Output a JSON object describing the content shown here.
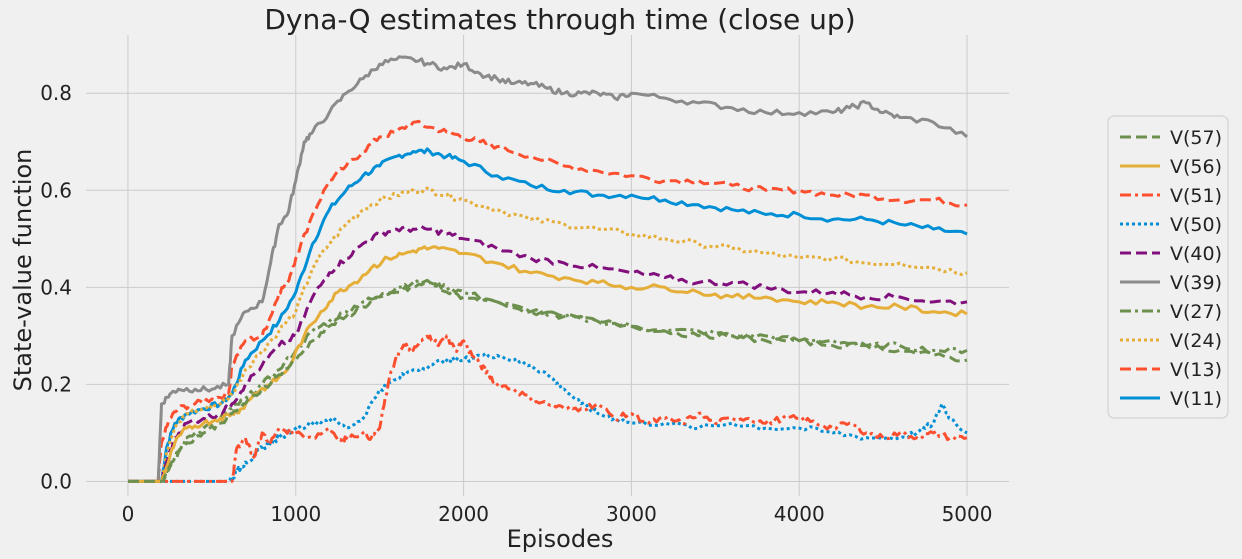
{
  "chart_data": {
    "type": "line",
    "title": "Dyna-Q estimates through time (close up)",
    "xlabel": "Episodes",
    "ylabel": "State-value function",
    "xlim": [
      -250,
      5250
    ],
    "ylim": [
      -0.03,
      0.92
    ],
    "xticks": [
      0,
      1000,
      2000,
      3000,
      4000,
      5000
    ],
    "yticks": [
      0.0,
      0.2,
      0.4,
      0.6,
      0.8
    ],
    "xtick_labels": [
      "0",
      "1000",
      "2000",
      "3000",
      "4000",
      "5000"
    ],
    "ytick_labels": [
      "0.0",
      "0.2",
      "0.4",
      "0.6",
      "0.8"
    ],
    "grid": true,
    "legend_position": "right",
    "series": [
      {
        "name": "V(57)",
        "color": "#6d904f",
        "dash": "dashed",
        "x": [
          0,
          150,
          200,
          260,
          350,
          450,
          550,
          620,
          700,
          800,
          900,
          1000,
          1100,
          1200,
          1300,
          1400,
          1500,
          1600,
          1700,
          1800,
          1900,
          2000,
          2200,
          2400,
          2600,
          2800,
          3000,
          3200,
          3400,
          3600,
          3800,
          4000,
          4200,
          4400,
          4600,
          4800,
          5000
        ],
        "values": [
          0,
          0,
          0,
          0.04,
          0.08,
          0.1,
          0.12,
          0.14,
          0.16,
          0.19,
          0.22,
          0.25,
          0.29,
          0.32,
          0.34,
          0.36,
          0.38,
          0.39,
          0.4,
          0.41,
          0.39,
          0.38,
          0.37,
          0.35,
          0.34,
          0.33,
          0.32,
          0.31,
          0.3,
          0.3,
          0.29,
          0.29,
          0.28,
          0.28,
          0.27,
          0.26,
          0.25
        ]
      },
      {
        "name": "V(56)",
        "color": "#e5ae38",
        "dash": "solid",
        "x": [
          0,
          200,
          230,
          280,
          350,
          450,
          550,
          620,
          680,
          750,
          850,
          950,
          1050,
          1150,
          1250,
          1350,
          1450,
          1550,
          1650,
          1750,
          1850,
          2000,
          2200,
          2400,
          2600,
          2800,
          3000,
          3200,
          3400,
          3600,
          3800,
          4000,
          4200,
          4400,
          4600,
          4800,
          5000
        ],
        "values": [
          0,
          0,
          0.03,
          0.08,
          0.11,
          0.12,
          0.13,
          0.14,
          0.15,
          0.18,
          0.2,
          0.23,
          0.3,
          0.35,
          0.39,
          0.41,
          0.44,
          0.46,
          0.47,
          0.48,
          0.48,
          0.47,
          0.45,
          0.43,
          0.42,
          0.41,
          0.4,
          0.4,
          0.39,
          0.38,
          0.38,
          0.37,
          0.37,
          0.36,
          0.36,
          0.35,
          0.345
        ]
      },
      {
        "name": "V(51)",
        "color": "#fc4f30",
        "dash": "dashdot",
        "x": [
          0,
          400,
          500,
          620,
          650,
          700,
          750,
          800,
          850,
          900,
          1000,
          1100,
          1200,
          1280,
          1300,
          1400,
          1450,
          1500,
          1550,
          1600,
          1650,
          1700,
          1750,
          1800,
          1850,
          1900,
          1950,
          2000,
          2050,
          2100,
          2150,
          2200,
          2300,
          2400,
          2500,
          2600,
          2700,
          2800,
          2900,
          3000,
          3100,
          3200,
          3300,
          3400,
          3500,
          3600,
          3700,
          3800,
          3900,
          4000,
          4100,
          4200,
          4300,
          4400,
          4500,
          4600,
          4700,
          4800,
          4900,
          5000
        ],
        "values": [
          0,
          0,
          0,
          0,
          0.07,
          0.09,
          0.05,
          0.1,
          0.08,
          0.11,
          0.1,
          0.09,
          0.11,
          0.08,
          0.09,
          0.1,
          0.09,
          0.11,
          0.2,
          0.26,
          0.28,
          0.27,
          0.29,
          0.3,
          0.28,
          0.3,
          0.27,
          0.29,
          0.26,
          0.24,
          0.22,
          0.2,
          0.19,
          0.17,
          0.16,
          0.15,
          0.15,
          0.16,
          0.13,
          0.14,
          0.12,
          0.13,
          0.12,
          0.14,
          0.12,
          0.13,
          0.13,
          0.12,
          0.13,
          0.13,
          0.12,
          0.11,
          0.12,
          0.1,
          0.09,
          0.1,
          0.09,
          0.1,
          0.09,
          0.09
        ]
      },
      {
        "name": "V(50)",
        "color": "#008fd5",
        "dash": "dotted",
        "x": [
          0,
          600,
          650,
          700,
          750,
          800,
          850,
          900,
          1000,
          1100,
          1200,
          1300,
          1400,
          1500,
          1600,
          1700,
          1800,
          1900,
          2000,
          2100,
          2200,
          2300,
          2400,
          2500,
          2600,
          2700,
          2800,
          2900,
          3000,
          3200,
          3400,
          3600,
          3800,
          4000,
          4200,
          4400,
          4600,
          4700,
          4800,
          4850,
          4900,
          5000
        ],
        "values": [
          0,
          0,
          0.02,
          0.04,
          0.05,
          0.07,
          0.08,
          0.09,
          0.11,
          0.12,
          0.13,
          0.11,
          0.13,
          0.19,
          0.21,
          0.23,
          0.24,
          0.25,
          0.25,
          0.26,
          0.26,
          0.25,
          0.24,
          0.22,
          0.19,
          0.16,
          0.14,
          0.13,
          0.12,
          0.12,
          0.11,
          0.12,
          0.11,
          0.11,
          0.1,
          0.09,
          0.09,
          0.1,
          0.12,
          0.16,
          0.13,
          0.1
        ]
      },
      {
        "name": "V(40)",
        "color": "#810f7c",
        "dash": "dashed",
        "x": [
          0,
          200,
          230,
          280,
          350,
          450,
          550,
          620,
          700,
          800,
          900,
          1000,
          1100,
          1200,
          1300,
          1400,
          1500,
          1600,
          1700,
          1800,
          1900,
          2000,
          2200,
          2400,
          2600,
          2800,
          3000,
          3200,
          3400,
          3600,
          3800,
          4000,
          4200,
          4400,
          4600,
          4800,
          5000
        ],
        "values": [
          0,
          0,
          0.04,
          0.09,
          0.12,
          0.13,
          0.14,
          0.16,
          0.2,
          0.24,
          0.28,
          0.3,
          0.38,
          0.43,
          0.46,
          0.49,
          0.51,
          0.52,
          0.52,
          0.52,
          0.51,
          0.5,
          0.48,
          0.46,
          0.45,
          0.44,
          0.43,
          0.42,
          0.41,
          0.41,
          0.4,
          0.39,
          0.39,
          0.38,
          0.38,
          0.37,
          0.37
        ]
      },
      {
        "name": "V(39)",
        "color": "#8b8b8b",
        "dash": "solid",
        "x": [
          0,
          180,
          200,
          250,
          300,
          400,
          500,
          600,
          620,
          700,
          800,
          850,
          900,
          950,
          1000,
          1050,
          1100,
          1200,
          1300,
          1400,
          1500,
          1600,
          1700,
          1800,
          1900,
          2000,
          2100,
          2200,
          2300,
          2400,
          2500,
          2600,
          2700,
          2800,
          2900,
          3000,
          3200,
          3400,
          3600,
          3800,
          4000,
          4200,
          4300,
          4400,
          4500,
          4600,
          4800,
          5000
        ],
        "values": [
          0,
          0,
          0.16,
          0.18,
          0.19,
          0.19,
          0.19,
          0.2,
          0.3,
          0.35,
          0.37,
          0.45,
          0.53,
          0.55,
          0.62,
          0.7,
          0.72,
          0.76,
          0.8,
          0.83,
          0.86,
          0.87,
          0.87,
          0.86,
          0.85,
          0.86,
          0.84,
          0.83,
          0.82,
          0.82,
          0.81,
          0.8,
          0.8,
          0.8,
          0.79,
          0.8,
          0.79,
          0.78,
          0.77,
          0.76,
          0.76,
          0.76,
          0.77,
          0.78,
          0.76,
          0.75,
          0.74,
          0.71
        ]
      },
      {
        "name": "V(27)",
        "color": "#6d904f",
        "dash": "dashdot",
        "x": [
          0,
          200,
          250,
          300,
          350,
          450,
          550,
          620,
          700,
          800,
          900,
          1000,
          1100,
          1200,
          1300,
          1400,
          1500,
          1600,
          1700,
          1800,
          1900,
          2000,
          2200,
          2400,
          2600,
          2800,
          3000,
          3200,
          3400,
          3600,
          3800,
          4000,
          4200,
          4400,
          4600,
          4800,
          5000
        ],
        "values": [
          0,
          0,
          0.03,
          0.06,
          0.09,
          0.11,
          0.13,
          0.15,
          0.17,
          0.2,
          0.23,
          0.27,
          0.31,
          0.33,
          0.35,
          0.37,
          0.38,
          0.4,
          0.41,
          0.41,
          0.4,
          0.39,
          0.37,
          0.35,
          0.34,
          0.33,
          0.32,
          0.31,
          0.31,
          0.3,
          0.3,
          0.29,
          0.29,
          0.28,
          0.28,
          0.27,
          0.27
        ]
      },
      {
        "name": "V(24)",
        "color": "#e5ae38",
        "dash": "dotted",
        "x": [
          0,
          200,
          230,
          280,
          350,
          450,
          550,
          620,
          700,
          800,
          900,
          1000,
          1100,
          1200,
          1300,
          1400,
          1500,
          1600,
          1700,
          1800,
          1900,
          2000,
          2200,
          2400,
          2600,
          2800,
          3000,
          3200,
          3400,
          3600,
          3800,
          4000,
          4200,
          4400,
          4600,
          4800,
          5000
        ],
        "values": [
          0,
          0,
          0.06,
          0.11,
          0.14,
          0.15,
          0.16,
          0.18,
          0.23,
          0.27,
          0.31,
          0.35,
          0.44,
          0.49,
          0.53,
          0.56,
          0.58,
          0.59,
          0.6,
          0.6,
          0.59,
          0.58,
          0.56,
          0.54,
          0.53,
          0.52,
          0.51,
          0.5,
          0.49,
          0.48,
          0.47,
          0.46,
          0.46,
          0.45,
          0.45,
          0.44,
          0.43
        ]
      },
      {
        "name": "V(13)",
        "color": "#fc4f30",
        "dash": "dashed",
        "x": [
          0,
          180,
          200,
          250,
          300,
          400,
          500,
          600,
          620,
          700,
          800,
          850,
          900,
          950,
          1000,
          1100,
          1200,
          1300,
          1400,
          1500,
          1600,
          1700,
          1800,
          1900,
          2000,
          2100,
          2200,
          2400,
          2600,
          2800,
          3000,
          3200,
          3400,
          3600,
          3800,
          4000,
          4200,
          4400,
          4600,
          4800,
          5000
        ],
        "values": [
          0,
          0,
          0.08,
          0.13,
          0.15,
          0.16,
          0.17,
          0.18,
          0.24,
          0.29,
          0.3,
          0.34,
          0.39,
          0.41,
          0.46,
          0.55,
          0.62,
          0.65,
          0.68,
          0.71,
          0.72,
          0.74,
          0.73,
          0.72,
          0.71,
          0.7,
          0.69,
          0.67,
          0.65,
          0.64,
          0.63,
          0.62,
          0.62,
          0.61,
          0.6,
          0.6,
          0.59,
          0.59,
          0.58,
          0.58,
          0.57
        ]
      },
      {
        "name": "V(11)",
        "color": "#008fd5",
        "dash": "solid",
        "x": [
          0,
          200,
          230,
          280,
          350,
          450,
          550,
          620,
          700,
          800,
          900,
          1000,
          1100,
          1200,
          1300,
          1400,
          1500,
          1600,
          1700,
          1800,
          1900,
          2000,
          2200,
          2400,
          2600,
          2800,
          3000,
          3200,
          3400,
          3600,
          3800,
          4000,
          4200,
          4400,
          4600,
          4800,
          5000
        ],
        "values": [
          0,
          0,
          0.07,
          0.12,
          0.14,
          0.15,
          0.16,
          0.18,
          0.25,
          0.29,
          0.33,
          0.39,
          0.49,
          0.56,
          0.6,
          0.63,
          0.65,
          0.67,
          0.68,
          0.68,
          0.67,
          0.66,
          0.63,
          0.61,
          0.6,
          0.59,
          0.59,
          0.58,
          0.57,
          0.56,
          0.55,
          0.55,
          0.54,
          0.54,
          0.53,
          0.52,
          0.51
        ]
      }
    ]
  }
}
